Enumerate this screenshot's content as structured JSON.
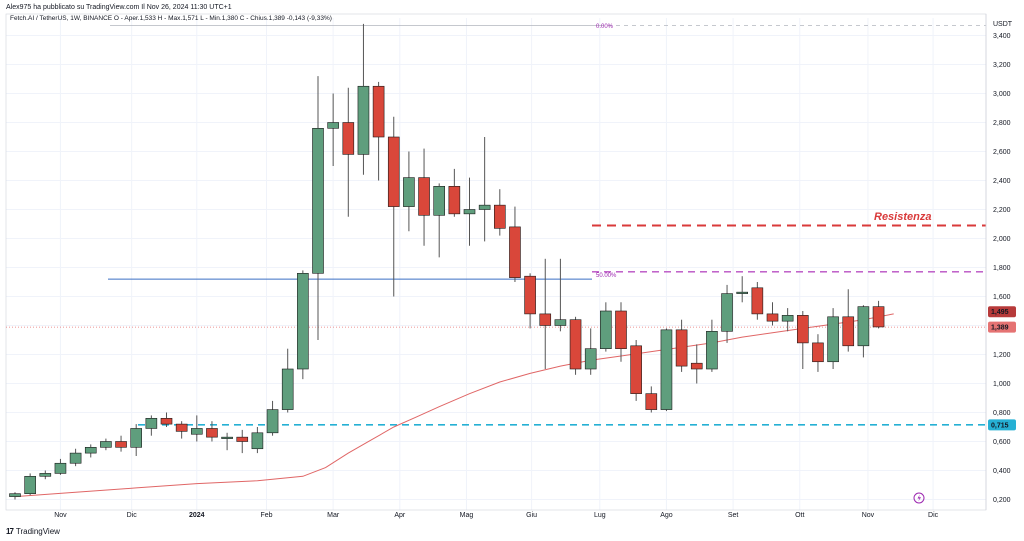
{
  "header": {
    "publisher": "Alex975 ha pubblicato su TradingView.com Il Nov 26, 2024 11:30 UTC+1",
    "legend": "Fetch.AI / TetherUS, 1W, BINANCE  O - Aper.1,533  H - Max.1,571  L - Min.1,380  C - Chius.1,389  -0,143 (-9,33%)",
    "currency": "USDT"
  },
  "footer": {
    "brand": "TradingView",
    "logo_glyph": "17"
  },
  "annotations": {
    "resistance_label": "Resistenza",
    "fib_top_label": "0.00%",
    "fib_mid_label": "50.00%",
    "last_price_label": "1,495",
    "close_price_label": "1,389",
    "support_label": "0,715",
    "resistance_level": 2.09,
    "fib_level": 1.77,
    "support_level": 0.715,
    "blue_line_level": 1.72,
    "fib_top_level": 3.47
  },
  "colors": {
    "up": "#5f9e7d",
    "down": "#d9473a",
    "ma": "#e06666",
    "resistance": "#d93a3a",
    "fib": "#b84fc2",
    "support": "#26b0d4",
    "blue_line": "#3a6fc4",
    "last_tag": "#b73a3a",
    "close_tag": "#e57373",
    "support_tag": "#26b0d4"
  },
  "chart_data": {
    "type": "candlestick",
    "title": "Fetch.AI / TetherUS, 1W, BINANCE",
    "ylabel": "USDT",
    "ylim": [
      0.1,
      3.6
    ],
    "y_ticks": [
      "3,400",
      "3,200",
      "3,000",
      "2,800",
      "2,600",
      "2,400",
      "2,200",
      "2,000",
      "1,800",
      "1,600",
      "1,400",
      "1,200",
      "1,000",
      "0,800",
      "0,600",
      "0,400",
      "0,200"
    ],
    "y_tick_values": [
      3.4,
      3.2,
      3.0,
      2.8,
      2.6,
      2.4,
      2.2,
      2.0,
      1.8,
      1.6,
      1.4,
      1.2,
      1.0,
      0.8,
      0.6,
      0.4,
      0.2
    ],
    "x_labels": [
      "Nov",
      "Dic",
      "2024",
      "Feb",
      "Mar",
      "Apr",
      "Mag",
      "Giu",
      "Lug",
      "Ago",
      "Set",
      "Ott",
      "Nov",
      "Dic"
    ],
    "x_label_weeks": [
      3,
      7.7,
      12,
      16.6,
      21,
      25.4,
      29.8,
      34.1,
      38.6,
      43,
      47.4,
      51.8,
      56.3,
      60.6
    ],
    "candles": [
      {
        "o": 0.22,
        "h": 0.25,
        "l": 0.2,
        "c": 0.24
      },
      {
        "o": 0.24,
        "h": 0.38,
        "l": 0.23,
        "c": 0.36
      },
      {
        "o": 0.36,
        "h": 0.4,
        "l": 0.34,
        "c": 0.38
      },
      {
        "o": 0.38,
        "h": 0.48,
        "l": 0.37,
        "c": 0.45
      },
      {
        "o": 0.45,
        "h": 0.55,
        "l": 0.43,
        "c": 0.52
      },
      {
        "o": 0.52,
        "h": 0.58,
        "l": 0.49,
        "c": 0.56
      },
      {
        "o": 0.56,
        "h": 0.62,
        "l": 0.54,
        "c": 0.6
      },
      {
        "o": 0.6,
        "h": 0.64,
        "l": 0.53,
        "c": 0.56
      },
      {
        "o": 0.56,
        "h": 0.72,
        "l": 0.5,
        "c": 0.69
      },
      {
        "o": 0.69,
        "h": 0.78,
        "l": 0.64,
        "c": 0.76
      },
      {
        "o": 0.76,
        "h": 0.8,
        "l": 0.7,
        "c": 0.72
      },
      {
        "o": 0.72,
        "h": 0.74,
        "l": 0.62,
        "c": 0.67
      },
      {
        "o": 0.65,
        "h": 0.78,
        "l": 0.6,
        "c": 0.69
      },
      {
        "o": 0.69,
        "h": 0.74,
        "l": 0.6,
        "c": 0.63
      },
      {
        "o": 0.62,
        "h": 0.66,
        "l": 0.54,
        "c": 0.63
      },
      {
        "o": 0.63,
        "h": 0.68,
        "l": 0.52,
        "c": 0.6
      },
      {
        "o": 0.55,
        "h": 0.7,
        "l": 0.52,
        "c": 0.66
      },
      {
        "o": 0.66,
        "h": 0.88,
        "l": 0.64,
        "c": 0.82
      },
      {
        "o": 0.82,
        "h": 1.24,
        "l": 0.8,
        "c": 1.1
      },
      {
        "o": 1.1,
        "h": 1.78,
        "l": 1.03,
        "c": 1.76
      },
      {
        "o": 1.76,
        "h": 3.12,
        "l": 1.3,
        "c": 2.76
      },
      {
        "o": 2.76,
        "h": 3.0,
        "l": 2.5,
        "c": 2.8
      },
      {
        "o": 2.8,
        "h": 3.04,
        "l": 2.15,
        "c": 2.58
      },
      {
        "o": 2.58,
        "h": 3.48,
        "l": 2.44,
        "c": 3.05
      },
      {
        "o": 3.05,
        "h": 3.08,
        "l": 2.4,
        "c": 2.7
      },
      {
        "o": 2.7,
        "h": 2.84,
        "l": 1.6,
        "c": 2.22
      },
      {
        "o": 2.22,
        "h": 2.6,
        "l": 2.05,
        "c": 2.42
      },
      {
        "o": 2.42,
        "h": 2.62,
        "l": 1.95,
        "c": 2.16
      },
      {
        "o": 2.16,
        "h": 2.38,
        "l": 1.87,
        "c": 2.36
      },
      {
        "o": 2.36,
        "h": 2.48,
        "l": 2.15,
        "c": 2.17
      },
      {
        "o": 2.17,
        "h": 2.42,
        "l": 1.95,
        "c": 2.2
      },
      {
        "o": 2.2,
        "h": 2.7,
        "l": 1.98,
        "c": 2.23
      },
      {
        "o": 2.23,
        "h": 2.34,
        "l": 2.02,
        "c": 2.07
      },
      {
        "o": 2.08,
        "h": 2.22,
        "l": 1.7,
        "c": 1.73
      },
      {
        "o": 1.74,
        "h": 1.76,
        "l": 1.38,
        "c": 1.48
      },
      {
        "o": 1.48,
        "h": 1.86,
        "l": 1.1,
        "c": 1.4
      },
      {
        "o": 1.4,
        "h": 1.86,
        "l": 1.36,
        "c": 1.44
      },
      {
        "o": 1.44,
        "h": 1.46,
        "l": 1.06,
        "c": 1.1
      },
      {
        "o": 1.1,
        "h": 1.38,
        "l": 1.06,
        "c": 1.24
      },
      {
        "o": 1.24,
        "h": 1.56,
        "l": 1.22,
        "c": 1.5
      },
      {
        "o": 1.5,
        "h": 1.56,
        "l": 1.15,
        "c": 1.24
      },
      {
        "o": 1.26,
        "h": 1.3,
        "l": 0.88,
        "c": 0.93
      },
      {
        "o": 0.93,
        "h": 0.98,
        "l": 0.8,
        "c": 0.82
      },
      {
        "o": 0.82,
        "h": 1.38,
        "l": 0.81,
        "c": 1.37
      },
      {
        "o": 1.37,
        "h": 1.44,
        "l": 1.08,
        "c": 1.12
      },
      {
        "o": 1.14,
        "h": 1.27,
        "l": 1.0,
        "c": 1.1
      },
      {
        "o": 1.1,
        "h": 1.44,
        "l": 1.08,
        "c": 1.36
      },
      {
        "o": 1.36,
        "h": 1.68,
        "l": 1.28,
        "c": 1.62
      },
      {
        "o": 1.62,
        "h": 1.74,
        "l": 1.56,
        "c": 1.63
      },
      {
        "o": 1.66,
        "h": 1.7,
        "l": 1.44,
        "c": 1.48
      },
      {
        "o": 1.48,
        "h": 1.56,
        "l": 1.4,
        "c": 1.43
      },
      {
        "o": 1.43,
        "h": 1.52,
        "l": 1.36,
        "c": 1.47
      },
      {
        "o": 1.47,
        "h": 1.5,
        "l": 1.1,
        "c": 1.28
      },
      {
        "o": 1.28,
        "h": 1.34,
        "l": 1.08,
        "c": 1.15
      },
      {
        "o": 1.15,
        "h": 1.52,
        "l": 1.1,
        "c": 1.46
      },
      {
        "o": 1.46,
        "h": 1.65,
        "l": 1.22,
        "c": 1.26
      },
      {
        "o": 1.26,
        "h": 1.54,
        "l": 1.18,
        "c": 1.53
      },
      {
        "o": 1.53,
        "h": 1.57,
        "l": 1.38,
        "c": 1.39
      }
    ],
    "ma_curve": [
      [
        0,
        0.22
      ],
      [
        4,
        0.25
      ],
      [
        8,
        0.28
      ],
      [
        12,
        0.31
      ],
      [
        16,
        0.33
      ],
      [
        19,
        0.36
      ],
      [
        20.5,
        0.42
      ],
      [
        22,
        0.52
      ],
      [
        23.5,
        0.61
      ],
      [
        25,
        0.7
      ],
      [
        26.5,
        0.77
      ],
      [
        28,
        0.84
      ],
      [
        30,
        0.93
      ],
      [
        32,
        1.01
      ],
      [
        34,
        1.07
      ],
      [
        36,
        1.12
      ],
      [
        38,
        1.16
      ],
      [
        40,
        1.19
      ],
      [
        42,
        1.22
      ],
      [
        44,
        1.25
      ],
      [
        46,
        1.28
      ],
      [
        48,
        1.32
      ],
      [
        50,
        1.35
      ],
      [
        52,
        1.38
      ],
      [
        54,
        1.41
      ],
      [
        56,
        1.44
      ],
      [
        58,
        1.48
      ]
    ]
  }
}
